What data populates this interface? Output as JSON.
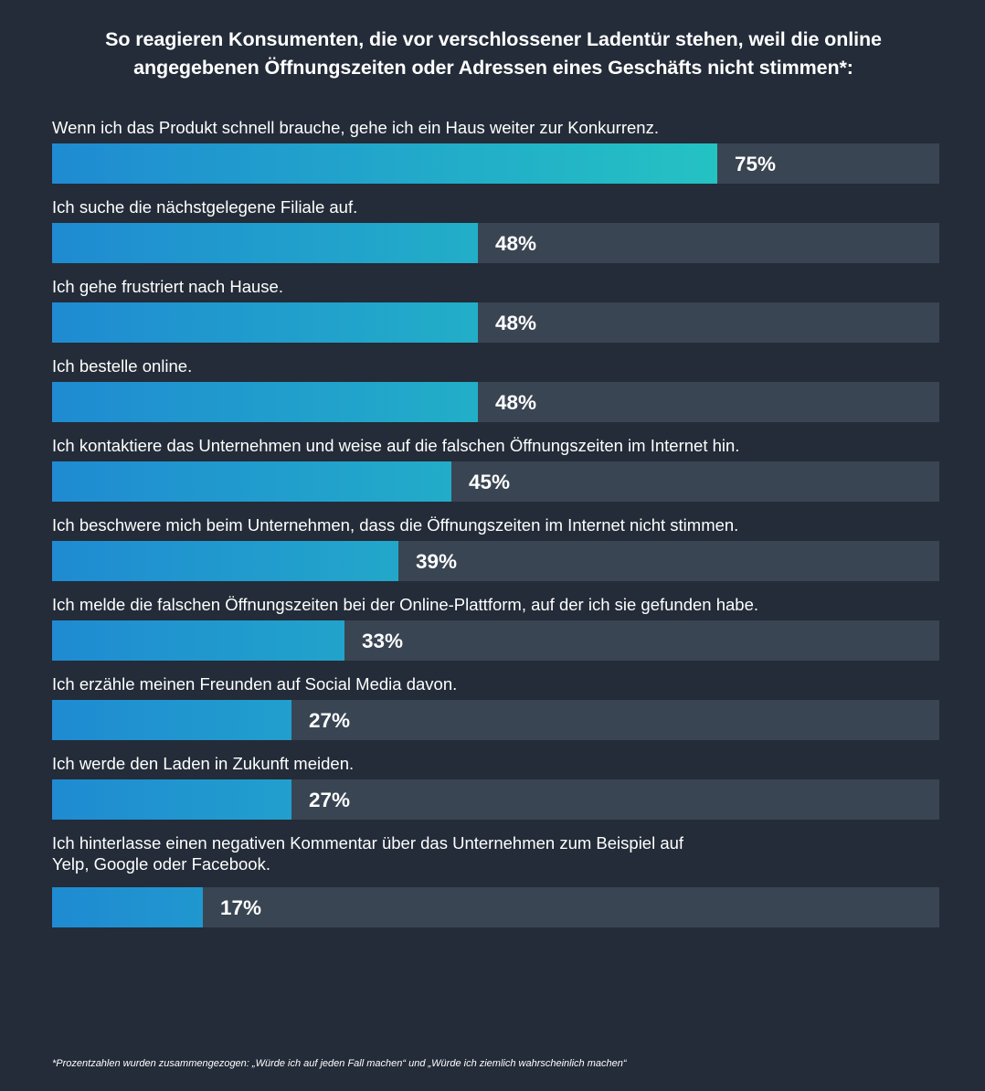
{
  "title": {
    "line1": "So reagieren Konsumenten, die vor verschlossener Ladentür stehen, weil die online",
    "line2": "angegebenen Öffnungszeiten oder Adressen eines Geschäfts nicht stimmen*:"
  },
  "footnote": "*Prozentzahlen wurden zusammengezogen: „Würde ich auf jeden Fall machen“ und „Würde ich ziemlich wahrscheinlich machen“",
  "colors": {
    "background": "#232c38",
    "track": "#3a4553",
    "gradient_start": "#1f8bd2",
    "gradient_end": "#26d4be",
    "text": "#ffffff"
  },
  "chart_data": {
    "type": "bar",
    "orientation": "horizontal",
    "xlim": [
      0,
      100
    ],
    "unit": "%",
    "categories": [
      [
        "Wenn ich das Produkt schnell brauche, gehe ich ein Haus weiter zur Konkurrenz."
      ],
      [
        "Ich suche die nächstgelegene Filiale auf."
      ],
      [
        "Ich gehe frustriert nach Hause."
      ],
      [
        "Ich bestelle online."
      ],
      [
        "Ich kontaktiere das Unternehmen und weise auf die falschen Öffnungszeiten im Internet hin."
      ],
      [
        "Ich beschwere mich beim Unternehmen, dass die Öffnungszeiten im Internet nicht stimmen."
      ],
      [
        "Ich melde die falschen Öffnungszeiten bei der Online-Plattform, auf der ich sie gefunden habe."
      ],
      [
        "Ich erzähle meinen Freunden auf Social Media davon."
      ],
      [
        "Ich werde den Laden in Zukunft meiden."
      ],
      [
        "Ich hinterlasse einen negativen Kommentar über das Unternehmen zum Beispiel auf",
        "Yelp, Google oder Facebook."
      ]
    ],
    "values": [
      75,
      48,
      48,
      48,
      45,
      39,
      33,
      27,
      27,
      17
    ],
    "value_labels": [
      "75%",
      "48%",
      "48%",
      "48%",
      "45%",
      "39%",
      "33%",
      "27%",
      "27%",
      "17%"
    ]
  }
}
